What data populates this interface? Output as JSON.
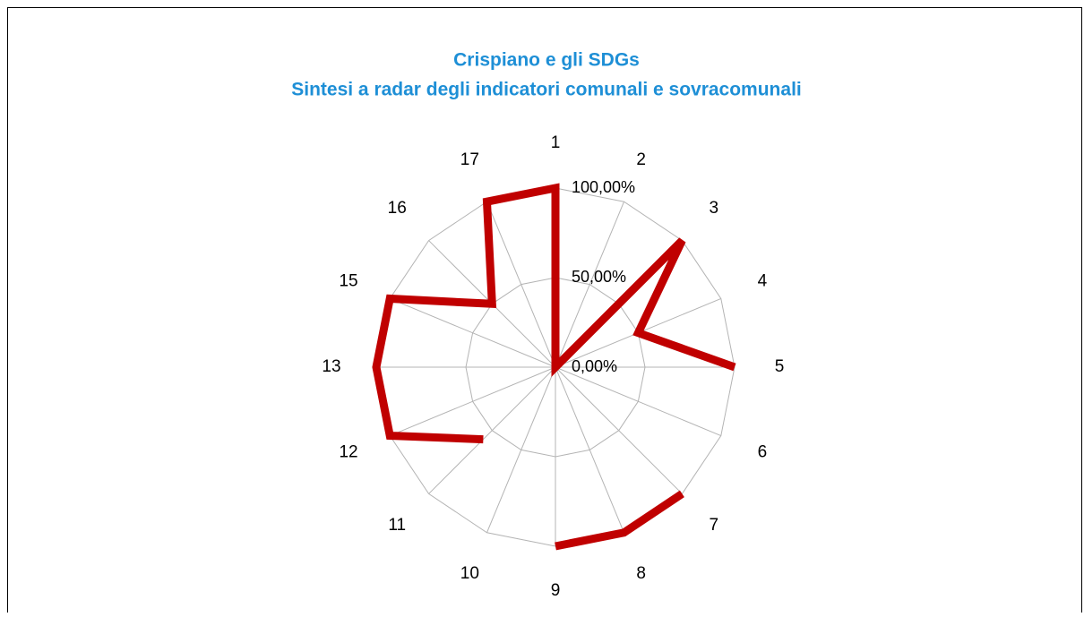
{
  "chart_data": {
    "type": "radar",
    "title": "Crispiano e gli SDGs",
    "subtitle": "Sintesi a radar degli indicatori comunali e sovracomunali",
    "categories": [
      "1",
      "2",
      "3",
      "4",
      "5",
      "6",
      "7",
      "8",
      "9",
      "10",
      "11",
      "12",
      "13",
      "15",
      "16",
      "17"
    ],
    "series": [
      {
        "values": [
          100,
          0,
          100,
          50,
          100,
          null,
          100,
          100,
          100,
          null,
          57,
          100,
          100,
          100,
          50,
          100
        ],
        "color": "#c00000"
      }
    ],
    "ylim": [
      0,
      100
    ],
    "yticks": [
      {
        "value": 0,
        "label": "0,00%"
      },
      {
        "value": 50,
        "label": "50,00%"
      },
      {
        "value": 100,
        "label": "100,00%"
      }
    ],
    "grid": true
  }
}
